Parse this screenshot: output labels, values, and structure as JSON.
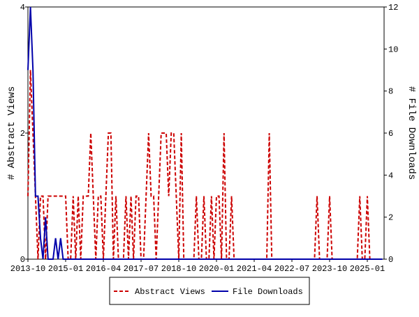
{
  "chart_data": {
    "type": "line",
    "x": [
      "2013-10",
      "2013-11",
      "2013-12",
      "2014-01",
      "2014-02",
      "2014-03",
      "2014-04",
      "2014-05",
      "2014-06",
      "2014-07",
      "2014-08",
      "2014-09",
      "2014-10",
      "2014-11",
      "2014-12",
      "2015-01",
      "2015-02",
      "2015-03",
      "2015-04",
      "2015-05",
      "2015-06",
      "2015-07",
      "2015-08",
      "2015-09",
      "2015-10",
      "2015-11",
      "2015-12",
      "2016-01",
      "2016-02",
      "2016-03",
      "2016-04",
      "2016-05",
      "2016-06",
      "2016-07",
      "2016-08",
      "2016-09",
      "2016-10",
      "2016-11",
      "2016-12",
      "2017-01",
      "2017-02",
      "2017-03",
      "2017-04",
      "2017-05",
      "2017-06",
      "2017-07",
      "2017-08",
      "2017-09",
      "2017-10",
      "2017-11",
      "2017-12",
      "2018-01",
      "2018-02",
      "2018-03",
      "2018-04",
      "2018-05",
      "2018-06",
      "2018-07",
      "2018-08",
      "2018-09",
      "2018-10",
      "2018-11",
      "2018-12",
      "2019-01",
      "2019-02",
      "2019-03",
      "2019-04",
      "2019-05",
      "2019-06",
      "2019-07",
      "2019-08",
      "2019-09",
      "2019-10",
      "2019-11",
      "2019-12",
      "2020-01",
      "2020-02",
      "2020-03",
      "2020-04",
      "2020-05",
      "2020-06",
      "2020-07",
      "2020-08",
      "2020-09",
      "2020-10",
      "2020-11",
      "2020-12",
      "2021-01",
      "2021-02",
      "2021-03",
      "2021-04",
      "2021-05",
      "2021-06",
      "2021-07",
      "2021-08",
      "2021-09",
      "2021-10",
      "2021-11",
      "2021-12",
      "2022-01",
      "2022-02",
      "2022-03",
      "2022-04",
      "2022-05",
      "2022-06",
      "2022-07",
      "2022-08",
      "2022-09",
      "2022-10",
      "2022-11",
      "2022-12",
      "2023-01",
      "2023-02",
      "2023-03",
      "2023-04",
      "2023-05",
      "2023-06",
      "2023-07",
      "2023-08",
      "2023-09",
      "2023-10",
      "2023-11",
      "2023-12",
      "2024-01",
      "2024-02",
      "2024-03",
      "2024-04",
      "2024-05",
      "2024-06",
      "2024-07",
      "2024-08",
      "2024-09",
      "2024-10",
      "2024-11",
      "2024-12",
      "2025-01",
      "2025-02",
      "2025-03",
      "2025-04",
      "2025-05",
      "2025-06",
      "2025-07"
    ],
    "xticks": [
      "2013-10",
      "2015-01",
      "2016-04",
      "2017-07",
      "2018-10",
      "2020-01",
      "2021-04",
      "2022-07",
      "2023-10",
      "2025-01"
    ],
    "y_label": "# Abstract Views",
    "y2_label": "# File Downloads",
    "ylim": [
      0,
      4
    ],
    "yticks": [
      0,
      2,
      4
    ],
    "y2lim": [
      0,
      12
    ],
    "y2ticks": [
      0,
      2,
      4,
      6,
      8,
      10,
      12
    ],
    "legend": "bottom",
    "series": [
      {
        "name": "Abstract Views",
        "color": "#cc0000",
        "dash": true,
        "values": [
          1,
          3,
          2,
          1,
          0,
          1,
          1,
          0,
          1,
          1,
          1,
          1,
          1,
          1,
          1,
          1,
          0,
          0,
          1,
          0,
          1,
          0,
          1,
          1,
          1,
          2,
          1,
          0,
          1,
          1,
          0,
          1,
          2,
          2,
          0,
          1,
          0,
          0,
          0,
          1,
          0,
          1,
          0,
          1,
          1,
          0,
          0,
          1,
          2,
          1,
          1,
          0,
          1,
          2,
          2,
          2,
          1,
          2,
          2,
          1,
          0,
          2,
          0,
          0,
          0,
          0,
          0,
          1,
          0,
          0,
          1,
          0,
          0,
          1,
          0,
          1,
          1,
          0,
          2,
          0,
          0,
          1,
          0,
          0,
          0,
          0,
          0,
          0,
          0,
          0,
          0,
          0,
          0,
          0,
          0,
          0,
          2,
          0,
          0,
          0,
          0,
          0,
          0,
          0,
          0,
          0,
          0,
          0,
          0,
          0,
          0,
          0,
          0,
          0,
          0,
          1,
          0,
          0,
          0,
          0,
          1,
          0,
          0,
          0,
          0,
          0,
          0,
          0,
          0,
          0,
          0,
          0,
          1,
          0,
          0,
          1,
          0,
          0,
          0,
          0,
          0,
          0
        ]
      },
      {
        "name": "File Downloads",
        "color": "#0000aa",
        "axis": "y2",
        "values": [
          9,
          12,
          9,
          3,
          3,
          1,
          0,
          2,
          0,
          0,
          0,
          1,
          0,
          1,
          0,
          0,
          0,
          0,
          0,
          0,
          0,
          0,
          0,
          0,
          0,
          0,
          0,
          0,
          0,
          0,
          0,
          0,
          0,
          0,
          0,
          0,
          0,
          0,
          0,
          0,
          0,
          0,
          0,
          0,
          0,
          0,
          0,
          0,
          0,
          0,
          0,
          0,
          0,
          0,
          0,
          0,
          0,
          0,
          0,
          0,
          0,
          0,
          0,
          0,
          0,
          0,
          0,
          0,
          0,
          0,
          0,
          0,
          0,
          0,
          0,
          0,
          0,
          0,
          0,
          0,
          0,
          0,
          0,
          0,
          0,
          0,
          0,
          0,
          0,
          0,
          0,
          0,
          0,
          0,
          0,
          0,
          0,
          0,
          0,
          0,
          0,
          0,
          0,
          0,
          0,
          0,
          0,
          0,
          0,
          0,
          0,
          0,
          0,
          0,
          0,
          0,
          0,
          0,
          0,
          0,
          0,
          0,
          0,
          0,
          0,
          0,
          0,
          0,
          0,
          0,
          0,
          0,
          0,
          0,
          0,
          0,
          0,
          0,
          0,
          0,
          0,
          0
        ]
      }
    ]
  }
}
